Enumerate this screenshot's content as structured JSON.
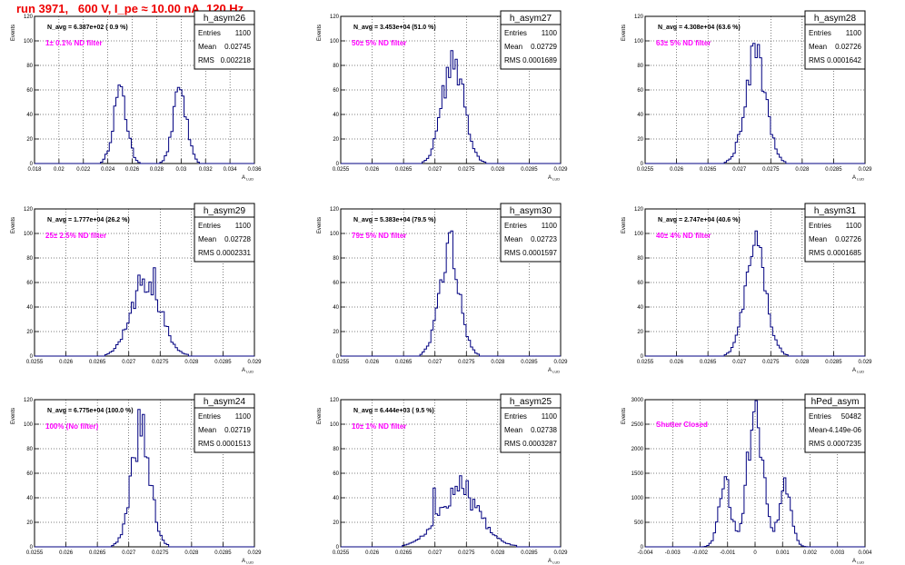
{
  "header": {
    "run_title": "run 3971,   600 V, I_pe ≈ 10.00 nA, 120 Hz"
  },
  "style": {
    "histogram_color": "#000080",
    "filter_label_color": "#ff00ff",
    "title_color": "#ee0000",
    "grid": "dotted"
  },
  "stats_labels": {
    "entries": "Entries",
    "mean": "Mean",
    "rms": "RMS"
  },
  "ylabel": "Events",
  "xlabel": "A",
  "xlabel_sub": "LUD",
  "chart_data": [
    {
      "type": "bar",
      "hist_name": "h_asym26",
      "navg": "N_avg = 6.387e+02 ( 0.9 %)",
      "filter": "1± 0.1% ND filter",
      "entries": "1100",
      "mean": "0.02745",
      "rms": "0.002218",
      "xlim": [
        0.018,
        0.036
      ],
      "ylim": [
        0,
        120
      ],
      "xticks": [
        "0.018",
        "0.02",
        "0.022",
        "0.024",
        "0.026",
        "0.028",
        "0.03",
        "0.032",
        "0.034",
        "0.036"
      ],
      "yticks": [
        "0",
        "20",
        "40",
        "60",
        "80",
        "100",
        "120"
      ],
      "peaks": [
        {
          "mu": 0.025,
          "s": 0.00055,
          "a": 58
        },
        {
          "mu": 0.0299,
          "s": 0.00055,
          "a": 58
        }
      ],
      "spikes": [
        {
          "x": 0.025,
          "v": 64
        },
        {
          "x": 0.0252,
          "v": 55
        },
        {
          "x": 0.0298,
          "v": 62
        },
        {
          "x": 0.0302,
          "v": 55
        }
      ]
    },
    {
      "type": "bar",
      "hist_name": "h_asym27",
      "navg": "N_avg = 3.453e+04 (51.0 %)",
      "filter": "50± 5% ND filter",
      "entries": "1100",
      "mean": "0.02729",
      "rms": "0.0001689",
      "xlim": [
        0.0255,
        0.029
      ],
      "ylim": [
        0,
        120
      ],
      "xticks": [
        "0.0255",
        "0.026",
        "0.0265",
        "0.027",
        "0.0275",
        "0.028",
        "0.0285",
        "0.029"
      ],
      "yticks": [
        "0",
        "20",
        "40",
        "60",
        "80",
        "100",
        "120"
      ],
      "peaks": [
        {
          "mu": 0.02729,
          "s": 0.000169,
          "a": 86
        }
      ],
      "spikes": [
        {
          "x": 0.02728,
          "v": 92
        },
        {
          "x": 0.02735,
          "v": 85
        }
      ]
    },
    {
      "type": "bar",
      "hist_name": "h_asym28",
      "navg": "N_avg = 4.308e+04 (63.6 %)",
      "filter": "63± 5% ND filter",
      "entries": "1100",
      "mean": "0.02726",
      "rms": "0.0001642",
      "xlim": [
        0.0255,
        0.029
      ],
      "ylim": [
        0,
        120
      ],
      "xticks": [
        "0.0255",
        "0.026",
        "0.0265",
        "0.027",
        "0.0275",
        "0.028",
        "0.0285",
        "0.029"
      ],
      "yticks": [
        "0",
        "20",
        "40",
        "60",
        "80",
        "100",
        "120"
      ],
      "peaks": [
        {
          "mu": 0.02726,
          "s": 0.000164,
          "a": 88
        }
      ],
      "spikes": [
        {
          "x": 0.02722,
          "v": 98
        },
        {
          "x": 0.0273,
          "v": 97
        }
      ]
    },
    {
      "type": "bar",
      "hist_name": "h_asym29",
      "navg": "N_avg = 1.777e+04 (26.2 %)",
      "filter": "25± 2.5% ND filter",
      "entries": "1100",
      "mean": "0.02728",
      "rms": "0.0002331",
      "xlim": [
        0.0255,
        0.029
      ],
      "ylim": [
        0,
        120
      ],
      "xticks": [
        "0.0255",
        "0.026",
        "0.0265",
        "0.027",
        "0.0275",
        "0.028",
        "0.0285",
        "0.029"
      ],
      "yticks": [
        "0",
        "20",
        "40",
        "60",
        "80",
        "100",
        "120"
      ],
      "peaks": [
        {
          "mu": 0.02728,
          "s": 0.000233,
          "a": 62
        }
      ],
      "spikes": [
        {
          "x": 0.0274,
          "v": 72
        },
        {
          "x": 0.02718,
          "v": 66
        }
      ]
    },
    {
      "type": "bar",
      "hist_name": "h_asym30",
      "navg": "N_avg = 5.383e+04 (79.5 %)",
      "filter": "79± 5% ND filter",
      "entries": "1100",
      "mean": "0.02723",
      "rms": "0.0001597",
      "xlim": [
        0.0255,
        0.029
      ],
      "ylim": [
        0,
        120
      ],
      "xticks": [
        "0.0255",
        "0.026",
        "0.0265",
        "0.027",
        "0.0275",
        "0.028",
        "0.0285",
        "0.029"
      ],
      "yticks": [
        "0",
        "20",
        "40",
        "60",
        "80",
        "100",
        "120"
      ],
      "peaks": [
        {
          "mu": 0.02723,
          "s": 0.00016,
          "a": 88
        }
      ],
      "spikes": [
        {
          "x": 0.02725,
          "v": 102
        },
        {
          "x": 0.0272,
          "v": 92
        }
      ]
    },
    {
      "type": "bar",
      "hist_name": "h_asym31",
      "navg": "N_avg = 2.747e+04 (40.6 %)",
      "filter": "40± 4% ND filter",
      "entries": "1100",
      "mean": "0.02726",
      "rms": "0.0001685",
      "xlim": [
        0.0255,
        0.029
      ],
      "ylim": [
        0,
        120
      ],
      "xticks": [
        "0.0255",
        "0.026",
        "0.0265",
        "0.027",
        "0.0275",
        "0.028",
        "0.0285",
        "0.029"
      ],
      "yticks": [
        "0",
        "20",
        "40",
        "60",
        "80",
        "100",
        "120"
      ],
      "peaks": [
        {
          "mu": 0.02726,
          "s": 0.000168,
          "a": 86
        }
      ],
      "spikes": [
        {
          "x": 0.02726,
          "v": 102
        },
        {
          "x": 0.02731,
          "v": 90
        }
      ]
    },
    {
      "type": "bar",
      "hist_name": "h_asym24",
      "navg": "N_avg = 6.775e+04 (100.0 %)",
      "filter": "100% (No filter)",
      "entries": "1100",
      "mean": "0.02719",
      "rms": "0.0001513",
      "xlim": [
        0.0255,
        0.029
      ],
      "ylim": [
        0,
        120
      ],
      "xticks": [
        "0.0255",
        "0.026",
        "0.0265",
        "0.027",
        "0.0275",
        "0.028",
        "0.0285",
        "0.029"
      ],
      "yticks": [
        "0",
        "20",
        "40",
        "60",
        "80",
        "100",
        "120"
      ],
      "peaks": [
        {
          "mu": 0.02719,
          "s": 0.000151,
          "a": 92
        }
      ],
      "spikes": [
        {
          "x": 0.02718,
          "v": 112
        },
        {
          "x": 0.02722,
          "v": 108
        }
      ]
    },
    {
      "type": "bar",
      "hist_name": "h_asym25",
      "navg": "N_avg = 6.444e+03 ( 9.5 %)",
      "filter": "10± 1% ND filter",
      "entries": "1100",
      "mean": "0.02738",
      "rms": "0.0003287",
      "xlim": [
        0.0255,
        0.029
      ],
      "ylim": [
        0,
        120
      ],
      "xticks": [
        "0.0255",
        "0.026",
        "0.0265",
        "0.027",
        "0.0275",
        "0.028",
        "0.0285",
        "0.029"
      ],
      "yticks": [
        "0",
        "20",
        "40",
        "60",
        "80",
        "100",
        "120"
      ],
      "peaks": [
        {
          "mu": 0.02738,
          "s": 0.00033,
          "a": 44
        }
      ],
      "spikes": [
        {
          "x": 0.0274,
          "v": 58
        },
        {
          "x": 0.0275,
          "v": 54
        },
        {
          "x": 0.027,
          "v": 48
        }
      ]
    },
    {
      "type": "bar",
      "hist_name": "hPed_asym",
      "navg": "",
      "filter": "Shutter Closed",
      "entries": "50482",
      "mean": "-4.149e-06",
      "rms": "0.0007235",
      "xlim": [
        -0.004,
        0.004
      ],
      "ylim": [
        0,
        3000
      ],
      "xticks": [
        "-0.004",
        "-0.003",
        "-0.002",
        "-0.001",
        "0",
        "0.001",
        "0.002",
        "0.003",
        "0.004"
      ],
      "yticks": [
        "0",
        "500",
        "1000",
        "1500",
        "2000",
        "2500",
        "3000"
      ],
      "peaks": [
        {
          "mu": -0.0011,
          "s": 0.00022,
          "a": 1300
        },
        {
          "mu": 0.0,
          "s": 0.00028,
          "a": 2750
        },
        {
          "mu": 0.0011,
          "s": 0.00022,
          "a": 1200
        }
      ],
      "spikes": [
        {
          "x": 0.0,
          "v": 2980
        }
      ]
    }
  ]
}
